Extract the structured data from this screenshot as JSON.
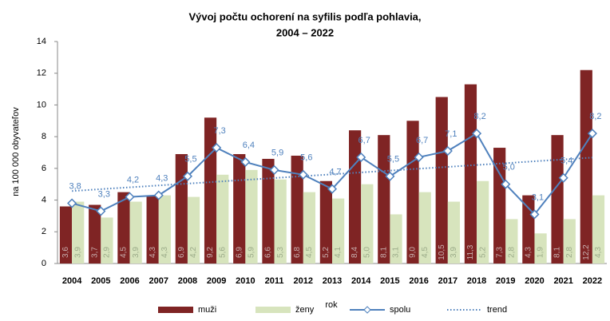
{
  "chart_data": {
    "type": "bar-line",
    "title": [
      "Vývoj počtu ochorení na syfilis  podľa pohlavia,",
      "2004 – 2022"
    ],
    "x_label": "rok",
    "y_label": "na 100 000 obyvateľov",
    "categories": [
      "2004",
      "2005",
      "2006",
      "2007",
      "2008",
      "2009",
      "2010",
      "2011",
      "2012",
      "2013",
      "2014",
      "2015",
      "2016",
      "2017",
      "2018",
      "2019",
      "2020",
      "2021",
      "2022"
    ],
    "series": [
      {
        "name": "muži",
        "kind": "bar",
        "color": "#7f2424",
        "values": [
          3.6,
          3.7,
          4.5,
          4.3,
          6.9,
          9.2,
          6.9,
          6.6,
          6.8,
          5.2,
          8.4,
          8.1,
          9.0,
          10.5,
          11.3,
          7.3,
          4.3,
          8.1,
          12.2
        ],
        "value_labels": [
          "3,6",
          "3,7",
          "4,5",
          "4,3",
          "6,9",
          "9,2",
          "6,9",
          "6,6",
          "6,8",
          "5,2",
          "8,4",
          "8,1",
          "9,0",
          "10,5",
          "11,3",
          "7,3",
          "4,3",
          "8,1",
          "12,2"
        ]
      },
      {
        "name": "ženy",
        "kind": "bar",
        "color": "#d7e4bd",
        "values": [
          3.9,
          2.9,
          3.9,
          4.3,
          4.2,
          5.6,
          5.9,
          5.3,
          4.5,
          4.1,
          5.0,
          3.1,
          4.5,
          3.9,
          5.2,
          2.8,
          1.9,
          2.8,
          4.3
        ],
        "value_labels": [
          "3,9",
          "2,9",
          "3,9",
          "4,3",
          "4,2",
          "5,6",
          "5,9",
          "5,3",
          "4,5",
          "4,1",
          "5,0",
          "3,1",
          "4,5",
          "3,9",
          "5,2",
          "2,8",
          "1,9",
          "2,8",
          "4,3"
        ]
      },
      {
        "name": "spolu",
        "kind": "line",
        "color": "#4f81bd",
        "values": [
          3.8,
          3.3,
          4.2,
          4.3,
          5.5,
          7.3,
          6.4,
          5.9,
          5.6,
          4.7,
          6.7,
          5.5,
          6.7,
          7.1,
          8.2,
          5.0,
          3.1,
          5.4,
          8.2
        ],
        "value_labels": [
          "3,8",
          "3,3",
          "4,2",
          "4,3",
          "5,5",
          "7,3",
          "6,4",
          "5,9",
          "5,6",
          "4,7",
          "6,7",
          "5,5",
          "6,7",
          "7,1",
          "8,2",
          "5,0",
          "3,1",
          "5,4",
          "8,2"
        ]
      }
    ],
    "trend": {
      "name": "trend",
      "color": "#4f81bd",
      "of_series": 2
    },
    "ylim": [
      0,
      14
    ],
    "yticks": [
      0,
      2,
      4,
      6,
      8,
      10,
      12,
      14
    ],
    "grid": false
  }
}
